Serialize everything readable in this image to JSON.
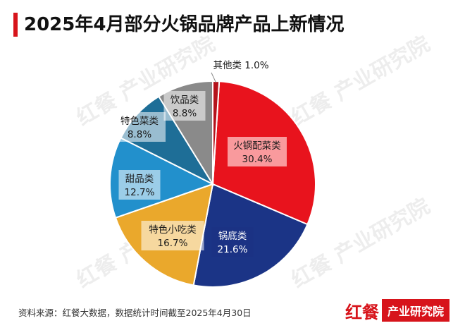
{
  "title": "2025年4月部分火锅品牌产品上新情况",
  "watermark": "红餐 产业研究院",
  "source": "资料来源：红餐大数据，数据统计时间截至2025年4月30日",
  "brand": {
    "logo": "红餐",
    "name": "产业研究院"
  },
  "colors": {
    "accent": "#d7141b"
  },
  "chart_data": {
    "type": "pie",
    "title": "2025年4月部分火锅品牌产品上新情况",
    "unit": "%",
    "slices": [
      {
        "name": "火锅配菜类",
        "value": 30.4,
        "label": "30.4%",
        "color": "#e8131d"
      },
      {
        "name": "锅底类",
        "value": 21.6,
        "label": "21.6%",
        "color": "#1b3486"
      },
      {
        "name": "特色小吃类",
        "value": 16.7,
        "label": "16.7%",
        "color": "#eaa82c"
      },
      {
        "name": "甜品类",
        "value": 12.7,
        "label": "12.7%",
        "color": "#2290cc"
      },
      {
        "name": "特色菜类",
        "value": 8.8,
        "label": "8.8%",
        "color": "#1e6e97"
      },
      {
        "name": "饮品类",
        "value": 8.8,
        "label": "8.8%",
        "color": "#8a8a8a"
      },
      {
        "name": "其他类",
        "value": 1.0,
        "label": "1.0%",
        "color": "#b5121b"
      }
    ]
  }
}
